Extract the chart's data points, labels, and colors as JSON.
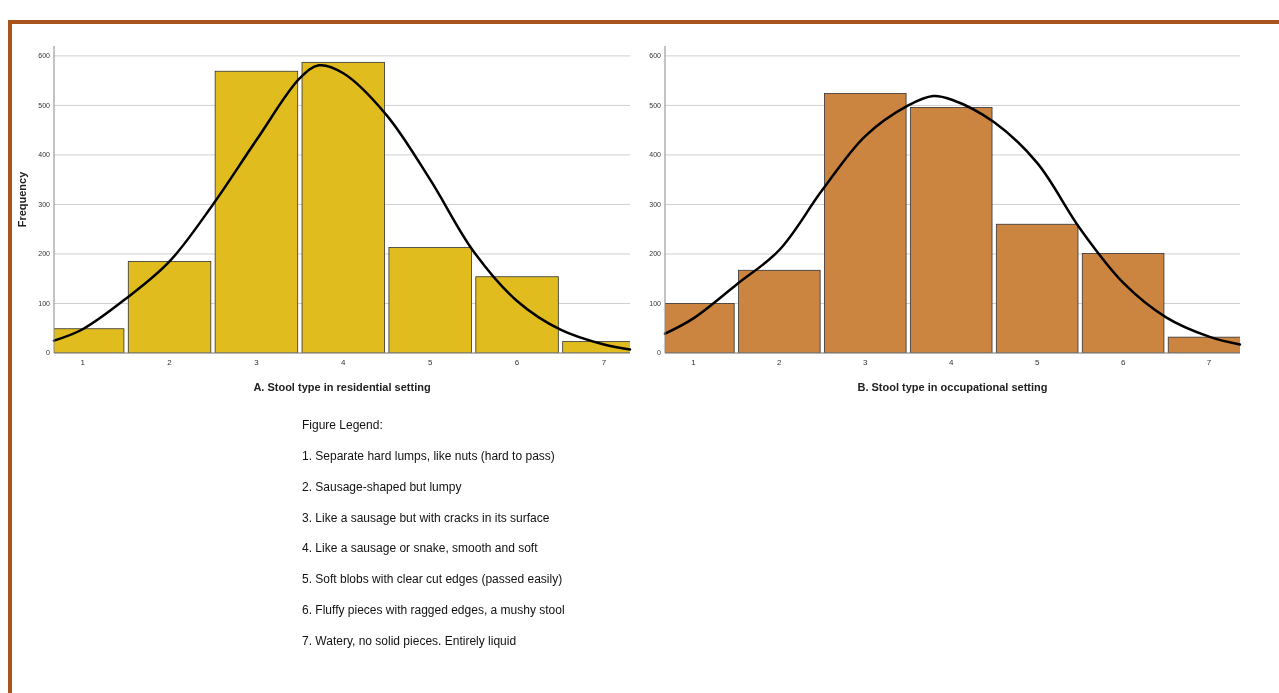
{
  "chart_data": [
    {
      "type": "bar",
      "xlabel": "A. Stool type in residential setting",
      "ylabel": "Frequency",
      "x": [
        1,
        2,
        3,
        4,
        5,
        6,
        7
      ],
      "values": [
        49,
        185,
        569,
        587,
        213,
        154,
        23
      ],
      "color": "#e0bc1f",
      "xlim": [
        0.67,
        7.3
      ],
      "xticks": [
        1,
        2,
        3,
        4,
        5,
        6,
        7
      ],
      "ylim": [
        0,
        620
      ],
      "yticks": [
        0,
        100,
        200,
        300,
        400,
        500,
        600
      ],
      "grid": "y",
      "series": [
        {
          "type": "line",
          "color": "#000000",
          "x": [
            0.67,
            1,
            1.5,
            2,
            2.5,
            3,
            3.5,
            3.72,
            4,
            4.5,
            5,
            5.5,
            6,
            6.5,
            7,
            7.3
          ],
          "values": [
            25,
            48,
            110,
            185,
            300,
            430,
            555,
            581,
            565,
            480,
            350,
            205,
            105,
            47,
            17,
            7
          ]
        }
      ]
    },
    {
      "type": "bar",
      "xlabel": "B. Stool type in occupational setting",
      "x": [
        1,
        2,
        3,
        4,
        5,
        6,
        7
      ],
      "values": [
        100,
        167,
        524,
        496,
        260,
        201,
        32
      ],
      "color": "#cc8540",
      "xlim": [
        0.67,
        7.36
      ],
      "xticks": [
        1,
        2,
        3,
        4,
        5,
        6,
        7
      ],
      "ylim": [
        0,
        620
      ],
      "yticks": [
        0,
        100,
        200,
        300,
        400,
        500,
        600
      ],
      "grid": "y",
      "series": [
        {
          "type": "line",
          "color": "#000000",
          "x": [
            0.67,
            1,
            1.5,
            2,
            2.5,
            3,
            3.5,
            3.79,
            4,
            4.5,
            5,
            5.5,
            6,
            6.5,
            7,
            7.36
          ],
          "values": [
            39,
            70,
            138,
            208,
            329,
            438,
            500,
            519,
            512,
            466,
            384,
            251,
            142,
            72,
            33,
            17
          ]
        }
      ]
    },
    {
      "type": "other",
      "title": "Figure Legend:",
      "annotations": [
        "1. Separate hard lumps, like nuts (hard to pass)",
        "2. Sausage-shaped but lumpy",
        "3. Like a sausage but with cracks in its surface",
        "4. Like a sausage or snake, smooth and soft",
        "5. Soft blobs with clear cut edges (passed easily)",
        "6. Fluffy pieces with ragged edges, a mushy stool",
        "7. Watery, no solid pieces. Entirely liquid"
      ]
    }
  ]
}
